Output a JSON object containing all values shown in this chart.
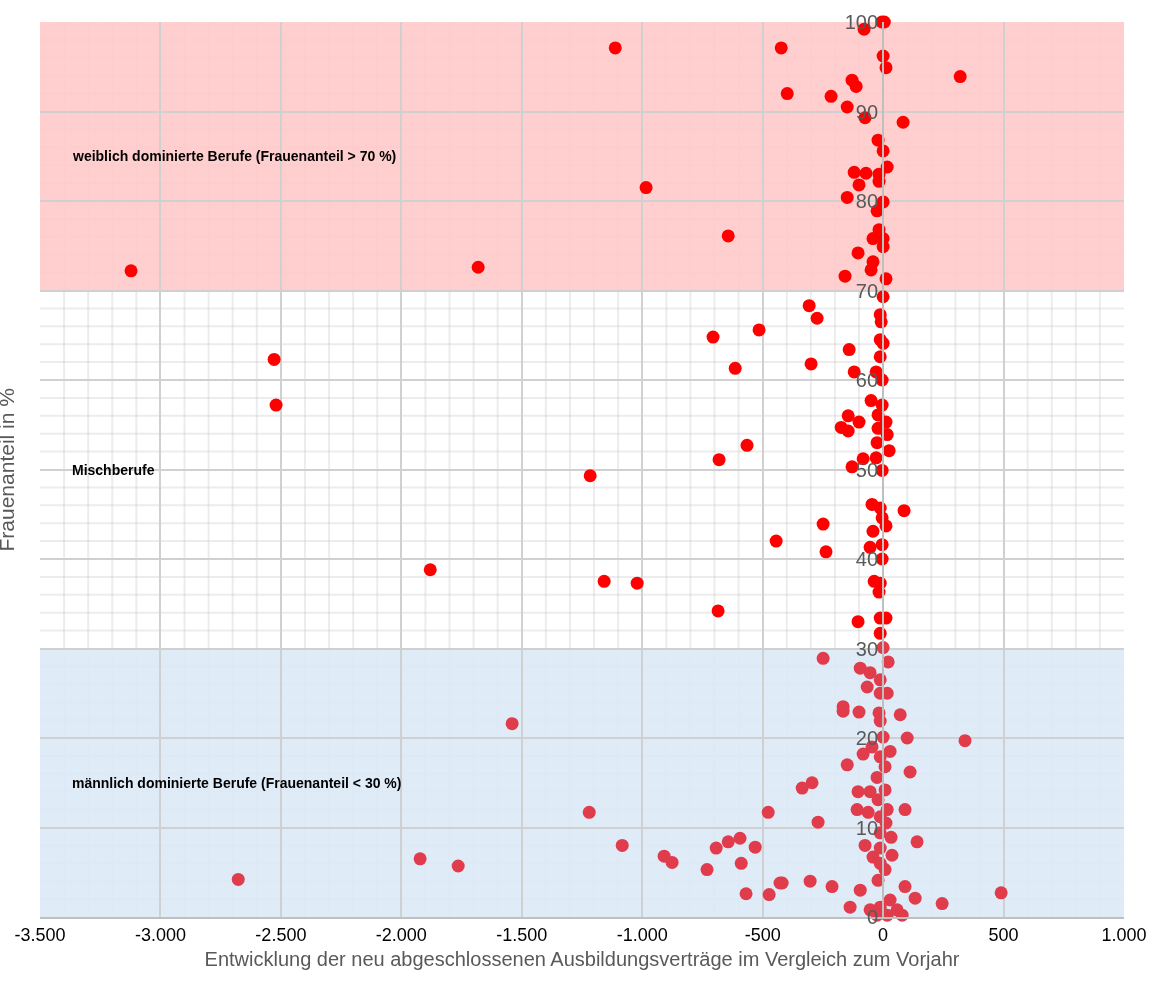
{
  "chart_data": {
    "type": "scatter",
    "xlabel": "Entwicklung der neu abgeschlossenen Ausbildungsverträge im Vergleich zum Vorjahr",
    "ylabel": "Frauenanteil in %",
    "annotations": [
      "Mischberufe"
    ],
    "xlim": [
      -3500,
      1000
    ],
    "xticks": [
      {
        "value": -3500,
        "label": "-3.500"
      },
      {
        "value": -3000,
        "label": "-3.000"
      },
      {
        "value": -2500,
        "label": "-2.500"
      },
      {
        "value": -2000,
        "label": "-2.000"
      },
      {
        "value": -1500,
        "label": "-1.500"
      },
      {
        "value": -1000,
        "label": "-1.000"
      },
      {
        "value": -500,
        "label": "-500"
      },
      {
        "value": 0,
        "label": "0"
      },
      {
        "value": 500,
        "label": "500"
      },
      {
        "value": 1000,
        "label": "1.000"
      }
    ],
    "ylim": [
      0,
      100
    ],
    "yticks": [
      0,
      10,
      20,
      30,
      40,
      50,
      60,
      70,
      80,
      90,
      100
    ],
    "grid": true,
    "marker": "circle",
    "bands": [
      {
        "axis": "y",
        "from": 70,
        "to": 100,
        "label": "weiblich dominierte Berufe (Frauenanteil > 70 %)",
        "color": "#ffc9c9"
      },
      {
        "axis": "y",
        "from": 0,
        "to": 30,
        "label": "männlich dominierte Berufe (Frauenanteil < 30 %)",
        "color": "#dde9f7"
      }
    ],
    "series": [
      {
        "color": "#ff0000",
        "x": [
          -5,
          5,
          -79,
          -1112,
          -423,
          0,
          12,
          320,
          -129,
          -112,
          -398,
          -216,
          -149,
          -75,
          83,
          -21,
          0,
          17,
          -120,
          -71,
          -17,
          -17,
          -100,
          -149,
          0,
          -25,
          -17,
          -42,
          0,
          0,
          -104,
          -42,
          -50,
          -158,
          12,
          -984,
          -643,
          -1681,
          -3122,
          0,
          -307,
          -274,
          -12,
          -8,
          -12,
          0,
          -141,
          -12,
          -299,
          -120,
          -29,
          -4,
          -50,
          -4,
          -145,
          -100,
          -21,
          12,
          -174,
          -145,
          -21,
          17,
          -25,
          25,
          -83,
          -29,
          -129,
          -4,
          -46,
          -12,
          87,
          -4,
          12,
          -42,
          -249,
          -4,
          -54,
          -237,
          -4,
          -37,
          -12,
          -17,
          -104,
          -12,
          12,
          -12,
          -515,
          -706,
          -2528,
          -614,
          -2520,
          -565,
          -681,
          -1216,
          -444,
          -1880,
          -1158,
          -1021,
          -685
        ],
        "values": [
          100,
          100,
          99.2,
          97.1,
          97.1,
          96.2,
          94.9,
          93.9,
          93.5,
          92.8,
          92.0,
          91.7,
          90.5,
          89.3,
          88.8,
          86.8,
          85.6,
          83.8,
          83.2,
          83.1,
          83.0,
          82.2,
          81.8,
          80.4,
          79.9,
          78.9,
          76.8,
          75.8,
          75.8,
          74.9,
          74.2,
          73.2,
          72.3,
          71.6,
          71.3,
          81.5,
          76.1,
          72.6,
          72.2,
          69.3,
          68.3,
          66.9,
          67.3,
          66.5,
          64.5,
          64.1,
          63.4,
          62.6,
          61.8,
          60.9,
          60.9,
          60.0,
          57.7,
          57.2,
          56.0,
          55.3,
          56.1,
          55.3,
          54.7,
          54.3,
          54.6,
          53.9,
          53.0,
          52.1,
          51.2,
          51.3,
          50.3,
          49.9,
          46.1,
          45.7,
          45.4,
          44.6,
          43.7,
          43.1,
          43.9,
          41.6,
          41.3,
          40.8,
          40.0,
          37.5,
          37.3,
          36.3,
          33.0,
          33.4,
          33.4,
          31.7,
          65.6,
          64.8,
          62.3,
          61.3,
          57.2,
          52.7,
          51.1,
          49.3,
          42.0,
          38.8,
          37.5,
          37.3,
          34.2
        ]
      },
      {
        "color": "#e03c4b",
        "x": [
          0,
          -249,
          21,
          -95,
          -54,
          -12,
          -66,
          -12,
          17,
          -166,
          -166,
          -100,
          -17,
          71,
          -12,
          0,
          100,
          340,
          -46,
          29,
          -83,
          -12,
          -149,
          8,
          112,
          -25,
          -295,
          -336,
          -104,
          -54,
          8,
          -21,
          -108,
          -62,
          17,
          91,
          -12,
          -270,
          12,
          -12,
          33,
          141,
          -75,
          -12,
          -42,
          37,
          -12,
          8,
          -21,
          -419,
          -303,
          -212,
          -95,
          91,
          133,
          245,
          -137,
          29,
          -54,
          -12,
          58,
          -25,
          17,
          79,
          -1540,
          -1220,
          -1083,
          -909,
          -876,
          -731,
          -693,
          -643,
          -594,
          -531,
          -589,
          -477,
          -428,
          -569,
          -473,
          -2677,
          -1922,
          -1764,
          490
        ],
        "values": [
          30.1,
          28.9,
          28.5,
          27.8,
          27.3,
          26.5,
          25.7,
          25.0,
          25.0,
          23.5,
          23.0,
          22.9,
          22.8,
          22.6,
          21.9,
          20.1,
          20.0,
          19.7,
          19.0,
          18.5,
          18.2,
          17.9,
          17.0,
          16.8,
          16.2,
          15.6,
          15.0,
          14.4,
          14.0,
          14.0,
          14.2,
          13.1,
          12.0,
          11.7,
          12.0,
          12.0,
          11.2,
          10.6,
          10.5,
          9.4,
          8.9,
          8.4,
          8.0,
          7.7,
          6.7,
          6.9,
          6.0,
          5.3,
          4.1,
          3.8,
          4.0,
          3.4,
          3.0,
          3.4,
          2.1,
          1.5,
          1.1,
          1.9,
          0.8,
          1.1,
          0.8,
          0.2,
          0.2,
          0.2,
          21.6,
          11.7,
          8.0,
          6.8,
          6.1,
          5.3,
          7.7,
          8.4,
          8.8,
          7.8,
          6.0,
          11.7,
          3.8,
          2.6,
          2.5,
          4.2,
          6.5,
          5.7,
          2.7
        ]
      }
    ]
  }
}
